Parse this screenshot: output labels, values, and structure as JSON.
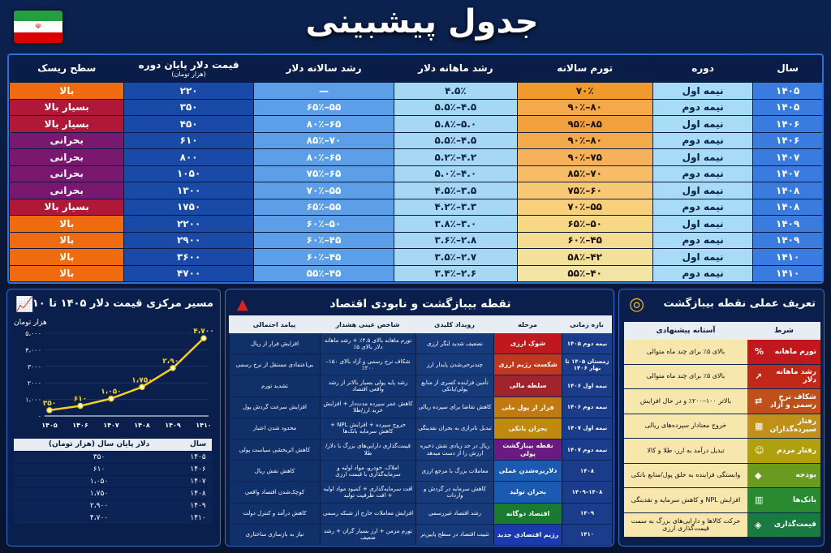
{
  "title": "جدول پیشبینی",
  "main_table": {
    "headers": {
      "year": "سال",
      "period": "دوره",
      "inflation": "تورم سالانه",
      "monthly": "رشد ماهانه دلار",
      "annual": "رشد سالانه دلار",
      "price": "قیمت دلار پایان دوره",
      "price_sub": "(هزار تومان)",
      "risk": "سطح ریسک"
    },
    "rows": [
      {
        "year": "۱۴۰۵",
        "period": "نیمه اول",
        "inflation": "۷۰٪",
        "monthly": "۴.۵٪",
        "annual": "—",
        "price": "۲۲۰",
        "risk": "بالا",
        "color": "#f09a2c",
        "rc": "#f06a10"
      },
      {
        "year": "۱۴۰۵",
        "period": "نیمه دوم",
        "inflation": "۸۰–۹۰٪",
        "monthly": "۴.۵–۵.۵٪",
        "annual": "۵۵–۶۵٪",
        "price": "۳۵۰",
        "risk": "بسیار بالا",
        "color": "#f4a94a",
        "rc": "#b01838"
      },
      {
        "year": "۱۴۰۶",
        "period": "نیمه اول",
        "inflation": "۸۵–۹۵٪",
        "monthly": "۵.۰–۵.۸٪",
        "annual": "۶۵–۸۰٪",
        "price": "۴۵۰",
        "risk": "بسیار بالا",
        "color": "#f2a03c",
        "rc": "#b01838"
      },
      {
        "year": "۱۴۰۶",
        "period": "نیمه دوم",
        "inflation": "۸۰–۹۰٪",
        "monthly": "۴.۵–۵.۵٪",
        "annual": "۷۰–۸۵٪",
        "price": "۶۱۰",
        "risk": "بحرانی",
        "color": "#f4a94a",
        "rc": "#7a1870"
      },
      {
        "year": "۱۴۰۷",
        "period": "نیمه اول",
        "inflation": "۷۵–۹۰٪",
        "monthly": "۴.۲–۵.۲٪",
        "annual": "۶۵–۸۰٪",
        "price": "۸۰۰",
        "risk": "بحرانی",
        "color": "#f5b25a",
        "rc": "#7a1870"
      },
      {
        "year": "۱۴۰۷",
        "period": "نیمه دوم",
        "inflation": "۷۰–۸۵٪",
        "monthly": "۴.۰–۵.۰٪",
        "annual": "۶۵–۷۵٪",
        "price": "۱۰۵۰",
        "risk": "بحرانی",
        "color": "#f6bc66",
        "rc": "#7a1870"
      },
      {
        "year": "۱۴۰۸",
        "period": "نیمه اول",
        "inflation": "۶۰–۷۵٪",
        "monthly": "۳.۵–۴.۵٪",
        "annual": "۵۵–۷۰٪",
        "price": "۱۳۰۰",
        "risk": "بحرانی",
        "color": "#f8c872",
        "rc": "#7a1870"
      },
      {
        "year": "۱۴۰۸",
        "period": "نیمه دوم",
        "inflation": "۵۵–۷۰٪",
        "monthly": "۳.۳–۴.۲٪",
        "annual": "۵۵–۶۵٪",
        "price": "۱۷۵۰",
        "risk": "بسیار بالا",
        "color": "#f8d07c",
        "rc": "#b01838"
      },
      {
        "year": "۱۴۰۹",
        "period": "نیمه اول",
        "inflation": "۵۰–۶۵٪",
        "monthly": "۳.۰–۳.۸٪",
        "annual": "۵۰–۶۰٪",
        "price": "۲۲۰۰",
        "risk": "بالا",
        "color": "#f8d886",
        "rc": "#f06a10"
      },
      {
        "year": "۱۴۰۹",
        "period": "نیمه دوم",
        "inflation": "۴۵–۶۰٪",
        "monthly": "۲.۸–۳.۶٪",
        "annual": "۴۵–۶۰٪",
        "price": "۲۹۰۰",
        "risk": "بالا",
        "color": "#f6dc90",
        "rc": "#f06a10"
      },
      {
        "year": "۱۴۱۰",
        "period": "نیمه اول",
        "inflation": "۴۲–۵۸٪",
        "monthly": "۲.۷–۳.۵٪",
        "annual": "۴۵–۶۰٪",
        "price": "۳۶۰۰",
        "risk": "بالا",
        "color": "#f4e09a",
        "rc": "#f06a10"
      },
      {
        "year": "۱۴۱۰",
        "period": "نیمه دوم",
        "inflation": "۴۰–۵۵٪",
        "monthly": "۲.۶–۳.۴٪",
        "annual": "۴۵–۵۵٪",
        "price": "۴۷۰۰",
        "risk": "بالا",
        "color": "#f2e4a4",
        "rc": "#f06a10"
      }
    ]
  },
  "chart": {
    "title": "مسیر مرکزی قیمت دلار ۱۴۰۵ تا ۱۴۱۰",
    "unit": "هزار تومان",
    "mini_table_headers": {
      "year": "سال",
      "price": "دلار پایان سال (هزار تومان)"
    },
    "mini_rows": [
      {
        "year": "۱۴۰۵",
        "price": "۳۵۰"
      },
      {
        "year": "۱۴۰۶",
        "price": "۶۱۰"
      },
      {
        "year": "۱۴۰۷",
        "price": "۱،۰۵۰"
      },
      {
        "year": "۱۴۰۸",
        "price": "۱،۷۵۰"
      },
      {
        "year": "۱۴۰۹",
        "price": "۲،۹۰۰"
      },
      {
        "year": "۱۴۱۰",
        "price": "۴،۷۰۰"
      }
    ]
  },
  "chart_data": {
    "type": "line",
    "categories": [
      "۱۴۰۵",
      "۱۴۰۶",
      "۱۴۰۷",
      "۱۴۰۸",
      "۱۴۰۹",
      "۱۴۱۰"
    ],
    "values": [
      350,
      610,
      1050,
      1750,
      2900,
      4700
    ],
    "labels": [
      "۳۵۰",
      "۶۱۰",
      "۱،۰۵۰",
      "۱،۷۵۰",
      "۲،۹۰۰",
      "۴،۷۰۰"
    ],
    "yticks": [
      "۵،۰۰۰",
      "۴،۰۰۰",
      "۳۰۰۰",
      "۲۰۰۰",
      "۱،۰۰۰",
      "۰"
    ],
    "ylim": [
      0,
      5000
    ],
    "ylabel": "هزار تومان",
    "title": "مسیر مرکزی قیمت دلار ۱۴۰۵ تا ۱۴۱۰"
  },
  "events": {
    "title": "تقطه بیبازگشت و نابودی اقتصاد",
    "headers": [
      "بازه زمانی",
      "مرحله",
      "رویداد کلیدی",
      "شاخص عینی هشدار",
      "پیامد احتمالی"
    ],
    "rows": [
      {
        "time": "نیمه دوم ۱۴۰۵",
        "stage": "شوک ارزی",
        "color": "#c0181c",
        "event": "تضعیف شدید لنگر ارزی",
        "sign": "تورم ماهانه بالای ۴.۵٪ + رشد ماهانه دلار بالای ۵٪",
        "out": "افزایش فرار از ریال"
      },
      {
        "time": "زمستان ۱۴۰۵ تا بهار ۱۴۰۶",
        "stage": "شکست رژیم ارزی",
        "color": "#c0391c",
        "event": "چندنرخی‌شدن پایدار ارز",
        "sign": "شکاف نرخ رسمی و آزاد بالای ۱۵۰–۲۰۰٪",
        "out": "بی‌اعتمادی مستقل از نرخ رسمی"
      },
      {
        "time": "نیمه اول ۱۴۰۶",
        "stage": "سلطه مالی",
        "color": "#a0242c",
        "event": "تأمین فزاینده کسری از منابع پولی/بانکی",
        "sign": "رشد پایه پولی بسیار بالاتر از رشد واقعی اقتصاد",
        "out": "تشدید تورم"
      },
      {
        "time": "نیمه دوم ۱۴۰۶",
        "stage": "فرار از پول ملی",
        "color": "#c07a10",
        "event": "کاهش تقاضا برای سپرده ریالی",
        "sign": "کاهش عمر سپرده مدت‌دار + افزایش خرید ارز/طلا",
        "out": "افزایش سرعت گردش پول"
      },
      {
        "time": "نیمه اول ۱۴۰۷",
        "stage": "بحران بانکی",
        "color": "#c08a10",
        "event": "تبدیل ناترازی به بحران نقدینگی",
        "sign": "خروج سپرده + افزایش NPL + کاهش سرمایه بانک‌ها",
        "out": "محدود شدن اعتبار"
      },
      {
        "time": "نیمه دوم ۱۴۰۷",
        "stage": "نقطه بیبازگشت پولی",
        "color": "#6a1a80",
        "event": "ریال در حد زیادی نقش ذخیره ارزش را از دست میدهد",
        "sign": "قیمت‌گذاری دارایی‌های بزرگ با دلار/طلا",
        "out": "کاهش اثربخشی سیاست پولی"
      },
      {
        "time": "۱۴۰۸",
        "stage": "دلاریزه‌شدن عملی",
        "color": "#1a5ab0",
        "event": "معاملات بزرگ با مرجع ارزی",
        "sign": "املاک، خودرو، مواد اولیه و سرمایه‌گذاری با قیمت ارزی",
        "out": "کاهش نقش ریال"
      },
      {
        "time": "۱۴۰۸–۱۴۰۹",
        "stage": "بحران تولید",
        "color": "#1a5ab0",
        "event": "کاهش سرمایه در گردش و واردات",
        "sign": "افت سرمایه‌گذاری + کمبود مواد اولیه + افت ظرفیت تولید",
        "out": "کوچک‌شدن اقتصاد واقعی"
      },
      {
        "time": "۱۴۰۹",
        "stage": "اقتصاد دوگانه",
        "color": "#1a7a30",
        "event": "رشد اقتصاد غیررسمی",
        "sign": "افزایش معاملات خارج از شبکه رسمی",
        "out": "کاهش درآمد و کنترل دولت"
      },
      {
        "time": "۱۴۱۰",
        "stage": "رژیم اقتصادی جدید",
        "color": "#1a3ab0",
        "event": "تثبیت اقتصاد در سطح پایین‌تر",
        "sign": "تورم مزمن + ارز بسیار گران + رشد ضعیف",
        "out": "نیاز به بازسازی ساختاری"
      }
    ]
  },
  "definition": {
    "title": "تعریف عملی نقطه بیبازگشت",
    "headers": {
      "cond": "شرط",
      "thr": "آستانه پیشنهادی"
    },
    "rows": [
      {
        "cond": "تورم ماهانه",
        "icon": "%",
        "color": "#c0181c",
        "thr": "بالای ۵٪ برای چند ماه متوالی"
      },
      {
        "cond": "رشد ماهانه دلار",
        "icon": "↗",
        "color": "#c02818",
        "thr": "بالای ۵٪ برای چند ماه متوالی"
      },
      {
        "cond": "شکاف نرخ رسمی و آزاد",
        "icon": "⇄",
        "color": "#c0501a",
        "thr": "بالاتر ۱۰۰–۲۰۰٪ و در حال افزایش"
      },
      {
        "cond": "رفتار سپرده‌گذاران",
        "icon": "▦",
        "color": "#c0901a",
        "thr": "خروج معنادار سپرده‌های ریالی"
      },
      {
        "cond": "رفتار مردم",
        "icon": "☺",
        "color": "#b0a010",
        "thr": "تبدیل درآمد به ارز، طلا و کالا"
      },
      {
        "cond": "بودجه",
        "icon": "◆",
        "color": "#6a9a20",
        "thr": "وابستگی فزاینده به خلق پول/منابع بانکی"
      },
      {
        "cond": "بانک‌ها",
        "icon": "▥",
        "color": "#2a8a30",
        "thr": "افزایش NPL و کاهش سرمایه و نقدینگی"
      },
      {
        "cond": "قیمت‌گذاری",
        "icon": "◈",
        "color": "#1a7a40",
        "thr": "حرکت کالاها و دارایی‌های بزرگ به سمت قیمت‌گذاری ارزی"
      }
    ]
  }
}
